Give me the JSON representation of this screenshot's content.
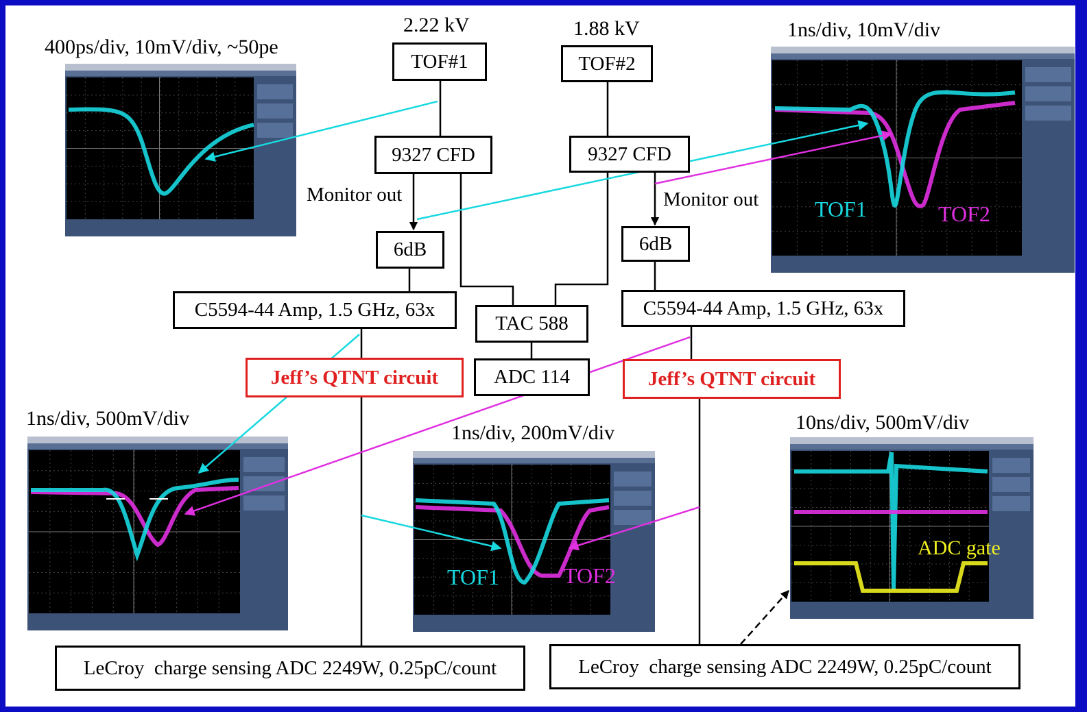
{
  "voltages": [
    "2.22 kV",
    "1.88 kV"
  ],
  "boxes": {
    "tof1": "TOF#1",
    "tof2": "TOF#2",
    "cfd1": "9327 CFD",
    "cfd2": "9327 CFD",
    "att1": "6dB",
    "att2": "6dB",
    "amp1": "C5594-44 Amp, 1.5 GHz, 63x",
    "amp2": "C5594-44 Amp, 1.5 GHz, 63x",
    "tac": "TAC 588",
    "adc": "ADC 114",
    "qtnt1": "Jeff’s QTNT circuit",
    "qtnt2": "Jeff’s QTNT circuit",
    "lecroy1": "LeCroy  charge sensing ADC 2249W, 0.25pC/count",
    "lecroy2": "LeCroy  charge sensing ADC 2249W, 0.25pC/count"
  },
  "monitor_out": [
    "Monitor out",
    "Monitor out"
  ],
  "scopes": [
    {
      "caption": "400ps/div, 10mV/div, ~50pe"
    },
    {
      "caption": "1ns/div, 10mV/div",
      "labels": [
        "TOF1",
        "TOF2"
      ]
    },
    {
      "caption": "1ns/div, 500mV/div"
    },
    {
      "caption": "1ns/div, 200mV/div",
      "labels": [
        "TOF1",
        "TOF2"
      ]
    },
    {
      "caption": "10ns/div, 500mV/div",
      "labels": [
        "ADC gate"
      ]
    }
  ]
}
